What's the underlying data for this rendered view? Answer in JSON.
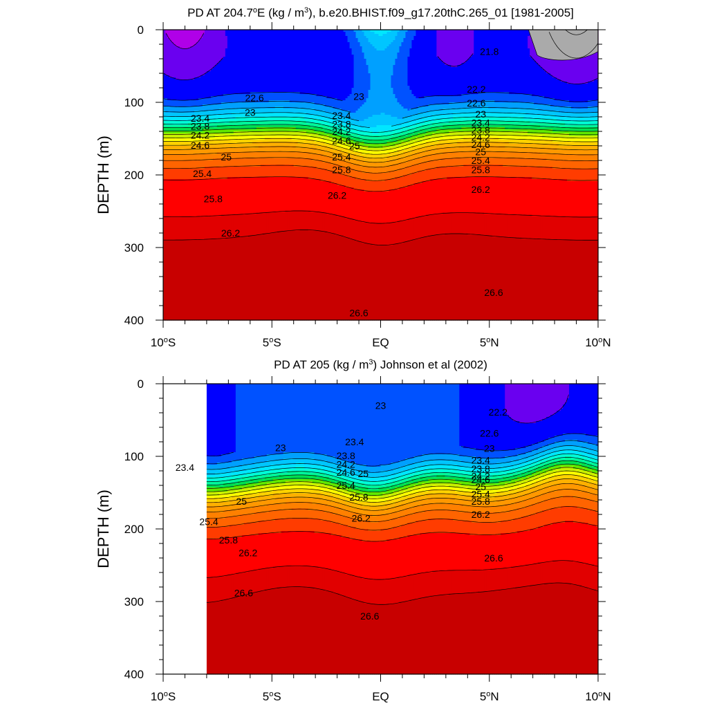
{
  "chart_data": [
    {
      "type": "contour",
      "title": "PD AT 204.7°E (kg / m³), b.e20.BHIST.f09_g17.20thC.265_01 [1981-2005]",
      "title_parts": {
        "prefix": "PD AT 204.7",
        "degree": "o",
        "middle": "E (kg / m",
        "exponent": "3",
        "suffix": "), b.e20.BHIST.f09_g17.20thC.265_01 [1981-2005]"
      },
      "ylabel": "DEPTH (m)",
      "x_ticks": [
        {
          "value": -10,
          "num": "10",
          "hemi": "S"
        },
        {
          "value": -5,
          "num": "5",
          "hemi": "S"
        },
        {
          "value": 0,
          "num": "",
          "hemi": "EQ"
        },
        {
          "value": 5,
          "num": "5",
          "hemi": "N"
        },
        {
          "value": 10,
          "num": "10",
          "hemi": "N"
        }
      ],
      "xlim": [
        -10,
        10
      ],
      "ylim": [
        0,
        400
      ],
      "y_ticks": [
        0,
        100,
        200,
        300,
        400
      ],
      "data_xlim": [
        -10,
        10
      ],
      "grey_region": {
        "x_start": 6.8,
        "depth_left": 35,
        "depth_right": 30
      },
      "contour_levels": [
        21.8,
        22.2,
        22.6,
        23,
        23.4,
        23.8,
        24.2,
        24.6,
        25,
        25.4,
        25.8,
        26.2,
        26.6
      ],
      "line_labels": [
        {
          "text": "21.8",
          "lat": 5.0,
          "depth": 30
        },
        {
          "text": "22.2",
          "lat": 4.4,
          "depth": 82
        },
        {
          "text": "22.6",
          "lat": -5.8,
          "depth": 94
        },
        {
          "text": "22.6",
          "lat": 4.4,
          "depth": 101
        },
        {
          "text": "23",
          "lat": -6.0,
          "depth": 114
        },
        {
          "text": "23",
          "lat": -1.0,
          "depth": 92
        },
        {
          "text": "23",
          "lat": 4.6,
          "depth": 116
        },
        {
          "text": "23.4",
          "lat": -8.3,
          "depth": 122
        },
        {
          "text": "23.8",
          "lat": -8.3,
          "depth": 133
        },
        {
          "text": "24.2",
          "lat": -8.3,
          "depth": 145
        },
        {
          "text": "24.6",
          "lat": -8.3,
          "depth": 159
        },
        {
          "text": "23.4",
          "lat": -1.8,
          "depth": 118
        },
        {
          "text": "23.8",
          "lat": -1.8,
          "depth": 130
        },
        {
          "text": "24.2",
          "lat": -1.8,
          "depth": 140
        },
        {
          "text": "24.6",
          "lat": -1.8,
          "depth": 153
        },
        {
          "text": "25",
          "lat": -1.2,
          "depth": 160
        },
        {
          "text": "25.4",
          "lat": -1.8,
          "depth": 175
        },
        {
          "text": "25.8",
          "lat": -1.8,
          "depth": 193
        },
        {
          "text": "23.4",
          "lat": 4.6,
          "depth": 128
        },
        {
          "text": "23.8",
          "lat": 4.6,
          "depth": 138
        },
        {
          "text": "24.2",
          "lat": 4.6,
          "depth": 148
        },
        {
          "text": "24.6",
          "lat": 4.6,
          "depth": 158
        },
        {
          "text": "25",
          "lat": 4.6,
          "depth": 168
        },
        {
          "text": "25.4",
          "lat": 4.6,
          "depth": 180
        },
        {
          "text": "25.8",
          "lat": 4.6,
          "depth": 193
        },
        {
          "text": "25",
          "lat": -7.1,
          "depth": 175
        },
        {
          "text": "25.4",
          "lat": -8.2,
          "depth": 198
        },
        {
          "text": "25.8",
          "lat": -7.7,
          "depth": 233
        },
        {
          "text": "26.2",
          "lat": -2.0,
          "depth": 228
        },
        {
          "text": "26.2",
          "lat": 4.6,
          "depth": 220
        },
        {
          "text": "26.2",
          "lat": -6.9,
          "depth": 280
        },
        {
          "text": "26.6",
          "lat": 5.2,
          "depth": 362
        },
        {
          "text": "26.6",
          "lat": -1.0,
          "depth": 390
        }
      ]
    },
    {
      "type": "contour",
      "title": "PD AT 205 (kg / m³) Johnson et al (2002)",
      "title_parts": {
        "prefix": "PD AT 205 (kg / m",
        "degree": "",
        "middle": "",
        "exponent": "3",
        "suffix": ") Johnson et al (2002)"
      },
      "ylabel": "DEPTH (m)",
      "x_ticks": [
        {
          "value": -10,
          "num": "10",
          "hemi": "S"
        },
        {
          "value": -5,
          "num": "5",
          "hemi": "S"
        },
        {
          "value": 0,
          "num": "",
          "hemi": "EQ"
        },
        {
          "value": 5,
          "num": "5",
          "hemi": "N"
        },
        {
          "value": 10,
          "num": "10",
          "hemi": "N"
        }
      ],
      "xlim": [
        -10,
        10
      ],
      "ylim": [
        0,
        400
      ],
      "y_ticks": [
        0,
        100,
        200,
        300,
        400
      ],
      "data_xlim": [
        -8,
        10
      ],
      "contour_levels": [
        22.2,
        22.6,
        23,
        23.4,
        23.8,
        24.2,
        24.6,
        25,
        25.4,
        25.8,
        26.2,
        26.6
      ],
      "line_labels": [
        {
          "text": "23",
          "lat": 0.0,
          "depth": 30
        },
        {
          "text": "22.2",
          "lat": 5.4,
          "depth": 39
        },
        {
          "text": "22.6",
          "lat": 5.0,
          "depth": 68
        },
        {
          "text": "23",
          "lat": -4.6,
          "depth": 88
        },
        {
          "text": "23",
          "lat": 5.0,
          "depth": 89
        },
        {
          "text": "23.4",
          "lat": -1.2,
          "depth": 80
        },
        {
          "text": "23.4",
          "lat": -9.0,
          "depth": 115
        },
        {
          "text": "23.8",
          "lat": -1.6,
          "depth": 99
        },
        {
          "text": "24.2",
          "lat": -1.6,
          "depth": 111
        },
        {
          "text": "24.6",
          "lat": -1.6,
          "depth": 122
        },
        {
          "text": "25",
          "lat": -0.8,
          "depth": 124
        },
        {
          "text": "25.4",
          "lat": -1.6,
          "depth": 140
        },
        {
          "text": "25.8",
          "lat": -1.0,
          "depth": 156
        },
        {
          "text": "23.4",
          "lat": 4.6,
          "depth": 105
        },
        {
          "text": "23.8",
          "lat": 4.6,
          "depth": 117
        },
        {
          "text": "24.2",
          "lat": 4.6,
          "depth": 127
        },
        {
          "text": "24.6",
          "lat": 4.6,
          "depth": 132
        },
        {
          "text": "25",
          "lat": 4.6,
          "depth": 142
        },
        {
          "text": "25.4",
          "lat": 4.6,
          "depth": 152
        },
        {
          "text": "25.8",
          "lat": 4.6,
          "depth": 162
        },
        {
          "text": "26.2",
          "lat": 4.6,
          "depth": 180
        },
        {
          "text": "26.2",
          "lat": -0.9,
          "depth": 185
        },
        {
          "text": "25",
          "lat": -6.4,
          "depth": 162
        },
        {
          "text": "25.4",
          "lat": -7.9,
          "depth": 190
        },
        {
          "text": "25.8",
          "lat": -7.0,
          "depth": 215
        },
        {
          "text": "26.2",
          "lat": -6.1,
          "depth": 233
        },
        {
          "text": "26.6",
          "lat": 5.2,
          "depth": 240
        },
        {
          "text": "26.6",
          "lat": -6.3,
          "depth": 288
        },
        {
          "text": "26.6",
          "lat": -0.5,
          "depth": 320
        }
      ]
    }
  ]
}
